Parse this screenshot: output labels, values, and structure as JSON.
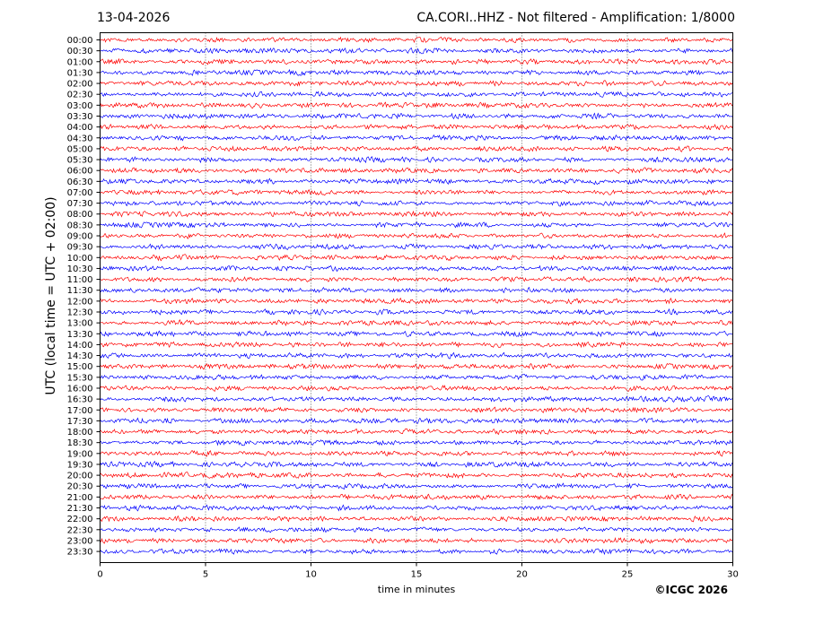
{
  "header": {
    "date": "13-04-2026",
    "title": "CA.CORI..HHZ - Not filtered - Amplification: 1/8000"
  },
  "footer": {
    "copyright": "©ICGC 2026"
  },
  "chart_data": {
    "type": "line",
    "title": "CA.CORI..HHZ - Not filtered - Amplification: 1/8000",
    "xlabel": "time in minutes",
    "ylabel": "UTC (local time = UTC + 02:00)",
    "xlim": [
      0,
      30
    ],
    "xticks": [
      0,
      5,
      10,
      15,
      20,
      25,
      30
    ],
    "grid": "vertical dotted at x ticks",
    "colors": {
      "even_rows": "#ff0000",
      "odd_rows": "#0000ff",
      "axis": "#000000"
    },
    "rows": [
      "00:00",
      "00:30",
      "01:00",
      "01:30",
      "02:00",
      "02:30",
      "03:00",
      "03:30",
      "04:00",
      "04:30",
      "05:00",
      "05:30",
      "06:00",
      "06:30",
      "07:00",
      "07:30",
      "08:00",
      "08:30",
      "09:00",
      "09:30",
      "10:00",
      "10:30",
      "11:00",
      "11:30",
      "12:00",
      "12:30",
      "13:00",
      "13:30",
      "14:00",
      "14:30",
      "15:00",
      "15:30",
      "16:00",
      "16:30",
      "17:00",
      "17:30",
      "18:00",
      "18:30",
      "19:00",
      "19:30",
      "20:00",
      "20:30",
      "21:00",
      "21:30",
      "22:00",
      "22:30",
      "23:00",
      "23:30"
    ]
  }
}
